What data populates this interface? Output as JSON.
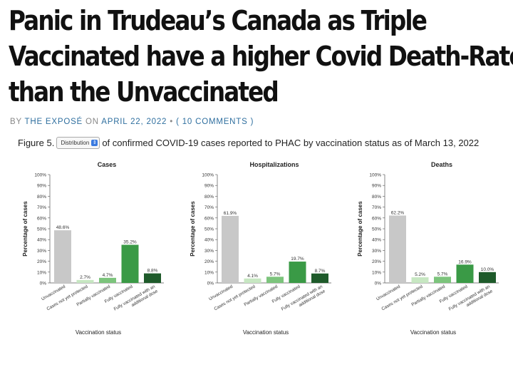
{
  "article": {
    "headline_lines": [
      "Panic in Trudeau’s Canada as Triple",
      "Vaccinated have a higher Covid Death-Rate",
      "than the Unvaccinated"
    ],
    "byline": {
      "by": "BY",
      "author": "THE EXPOSÉ",
      "on": "ON",
      "date": "APRIL 22, 2022",
      "bullet": "•",
      "comments": "( 10 COMMENTS )"
    },
    "figure": {
      "prefix": "Figure 5.",
      "dropdown_value": "Distribution",
      "suffix": "of confirmed COVID-19 cases reported to PHAC by vaccination status as of March 13, 2022"
    }
  },
  "colors": {
    "unvaccinated": "#c8c8c8",
    "not_yet_protected": "#c7e7c2",
    "partially": "#7cc47c",
    "fully": "#3a9a46",
    "additional": "#1e5a2a",
    "link": "#2f6f9f"
  },
  "chart_data": [
    {
      "type": "bar",
      "title": "Cases",
      "ylabel": "Percentage of cases",
      "xlabel": "Vaccination status",
      "ylim": [
        0,
        100
      ],
      "yticks": [
        "0%",
        "10%",
        "20%",
        "30%",
        "40%",
        "50%",
        "60%",
        "70%",
        "80%",
        "90%",
        "100%"
      ],
      "categories": [
        "Unvaccinated",
        "Cases not yet protected",
        "Partially vaccinated",
        "Fully vaccinated",
        "Fully vaccinated with an additional dose"
      ],
      "values": [
        48.6,
        2.7,
        4.7,
        35.2,
        8.8
      ],
      "value_labels": [
        "48.6%",
        "2.7%",
        "4.7%",
        "35.2%",
        "8.8%"
      ]
    },
    {
      "type": "bar",
      "title": "Hospitalizations",
      "ylabel": "Percentage of cases",
      "xlabel": "Vaccination status",
      "ylim": [
        0,
        100
      ],
      "yticks": [
        "0%",
        "10%",
        "20%",
        "30%",
        "40%",
        "50%",
        "60%",
        "70%",
        "80%",
        "90%",
        "100%"
      ],
      "categories": [
        "Unvaccinated",
        "Cases not yet protected",
        "Partially vaccinated",
        "Fully vaccinated",
        "Fully vaccinated with an additional dose"
      ],
      "values": [
        61.9,
        4.1,
        5.7,
        19.7,
        8.7
      ],
      "value_labels": [
        "61.9%",
        "4.1%",
        "5.7%",
        "19.7%",
        "8.7%"
      ]
    },
    {
      "type": "bar",
      "title": "Deaths",
      "ylabel": "Percentage of cases",
      "xlabel": "Vaccination status",
      "ylim": [
        0,
        100
      ],
      "yticks": [
        "0%",
        "10%",
        "20%",
        "30%",
        "40%",
        "50%",
        "60%",
        "70%",
        "80%",
        "90%",
        "100%"
      ],
      "categories": [
        "Unvaccinated",
        "Cases not yet protected",
        "Partially vaccinated",
        "Fully vaccinated",
        "Fully vaccinated with an additional dose"
      ],
      "values": [
        62.2,
        5.2,
        5.7,
        16.9,
        10.0
      ],
      "value_labels": [
        "62.2%",
        "5.2%",
        "5.7%",
        "16.9%",
        "10.0%"
      ]
    }
  ]
}
